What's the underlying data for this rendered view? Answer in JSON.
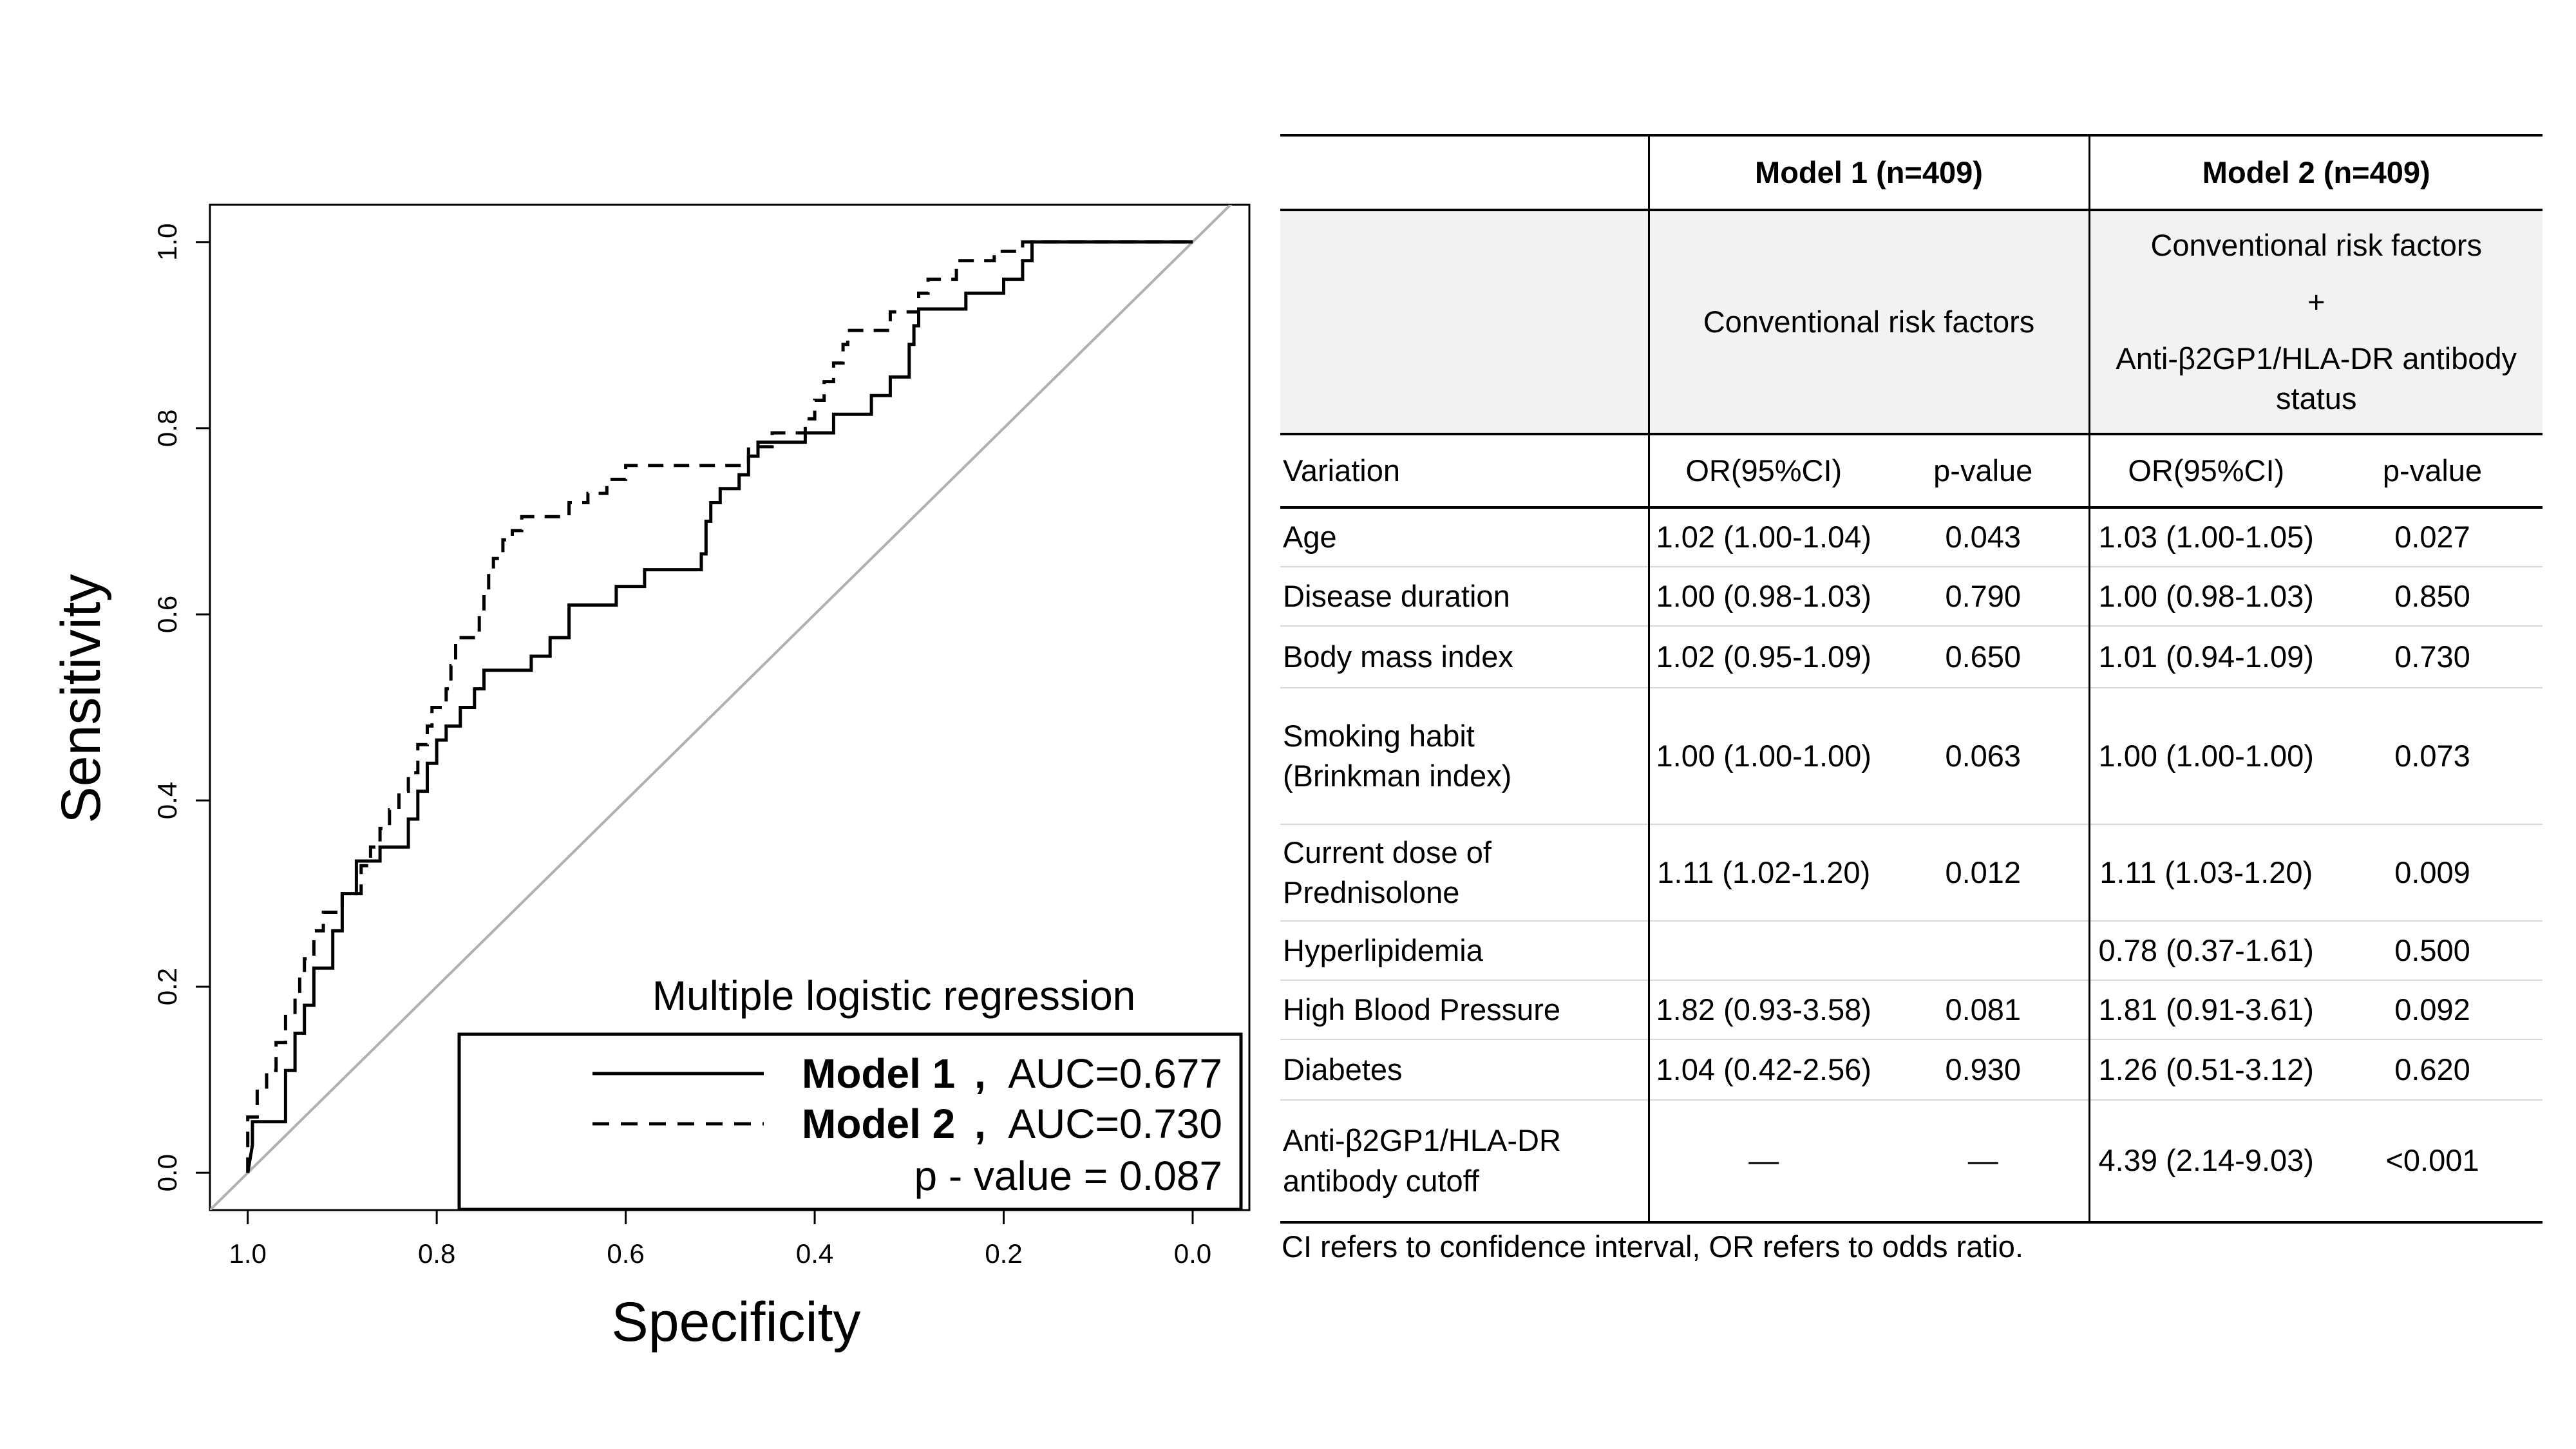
{
  "chart_data": {
    "type": "line",
    "xlabel": "Specificity",
    "ylabel": "Sensitivity",
    "xlim": [
      1.04,
      -0.06
    ],
    "ylim": [
      -0.04,
      1.04
    ],
    "x_reversed": true,
    "xticks": [
      "1.0",
      "0.8",
      "0.6",
      "0.4",
      "0.2",
      "0.0"
    ],
    "yticks": [
      "0.0",
      "0.2",
      "0.4",
      "0.6",
      "0.8",
      "1.0"
    ],
    "legend_title": "Multiple logistic regression",
    "legend_position": "bottom-right",
    "diagonal_color": "#b0b0b0",
    "series": [
      {
        "name": "Model 1",
        "auc_label": "AUC=0.677",
        "style": "solid",
        "points": [
          [
            1.0,
            0.0
          ],
          [
            0.995,
            0.03
          ],
          [
            0.995,
            0.055
          ],
          [
            0.96,
            0.055
          ],
          [
            0.96,
            0.11
          ],
          [
            0.95,
            0.11
          ],
          [
            0.95,
            0.15
          ],
          [
            0.94,
            0.15
          ],
          [
            0.94,
            0.18
          ],
          [
            0.93,
            0.18
          ],
          [
            0.93,
            0.22
          ],
          [
            0.91,
            0.22
          ],
          [
            0.91,
            0.26
          ],
          [
            0.9,
            0.26
          ],
          [
            0.9,
            0.3
          ],
          [
            0.885,
            0.3
          ],
          [
            0.885,
            0.335
          ],
          [
            0.86,
            0.335
          ],
          [
            0.86,
            0.35
          ],
          [
            0.83,
            0.35
          ],
          [
            0.83,
            0.38
          ],
          [
            0.82,
            0.38
          ],
          [
            0.82,
            0.41
          ],
          [
            0.81,
            0.41
          ],
          [
            0.81,
            0.44
          ],
          [
            0.8,
            0.44
          ],
          [
            0.8,
            0.465
          ],
          [
            0.79,
            0.465
          ],
          [
            0.79,
            0.48
          ],
          [
            0.775,
            0.48
          ],
          [
            0.775,
            0.5
          ],
          [
            0.76,
            0.5
          ],
          [
            0.76,
            0.52
          ],
          [
            0.75,
            0.52
          ],
          [
            0.75,
            0.54
          ],
          [
            0.7,
            0.54
          ],
          [
            0.7,
            0.555
          ],
          [
            0.68,
            0.555
          ],
          [
            0.68,
            0.575
          ],
          [
            0.66,
            0.575
          ],
          [
            0.66,
            0.61
          ],
          [
            0.61,
            0.61
          ],
          [
            0.61,
            0.63
          ],
          [
            0.58,
            0.63
          ],
          [
            0.58,
            0.648
          ],
          [
            0.52,
            0.648
          ],
          [
            0.52,
            0.665
          ],
          [
            0.515,
            0.665
          ],
          [
            0.515,
            0.7
          ],
          [
            0.51,
            0.7
          ],
          [
            0.51,
            0.72
          ],
          [
            0.5,
            0.72
          ],
          [
            0.5,
            0.735
          ],
          [
            0.48,
            0.735
          ],
          [
            0.48,
            0.75
          ],
          [
            0.47,
            0.75
          ],
          [
            0.47,
            0.77
          ],
          [
            0.46,
            0.77
          ],
          [
            0.46,
            0.785
          ],
          [
            0.41,
            0.785
          ],
          [
            0.41,
            0.795
          ],
          [
            0.38,
            0.795
          ],
          [
            0.38,
            0.815
          ],
          [
            0.34,
            0.815
          ],
          [
            0.34,
            0.835
          ],
          [
            0.32,
            0.835
          ],
          [
            0.32,
            0.855
          ],
          [
            0.3,
            0.855
          ],
          [
            0.3,
            0.89
          ],
          [
            0.295,
            0.89
          ],
          [
            0.295,
            0.91
          ],
          [
            0.29,
            0.91
          ],
          [
            0.29,
            0.928
          ],
          [
            0.24,
            0.928
          ],
          [
            0.24,
            0.945
          ],
          [
            0.2,
            0.945
          ],
          [
            0.2,
            0.96
          ],
          [
            0.18,
            0.96
          ],
          [
            0.18,
            0.98
          ],
          [
            0.17,
            0.98
          ],
          [
            0.17,
            1.0
          ],
          [
            0.0,
            1.0
          ]
        ]
      },
      {
        "name": "Model 2",
        "auc_label": "AUC=0.730",
        "style": "dashed",
        "points": [
          [
            1.0,
            0.0
          ],
          [
            1.0,
            0.06
          ],
          [
            0.99,
            0.06
          ],
          [
            0.99,
            0.09
          ],
          [
            0.98,
            0.09
          ],
          [
            0.98,
            0.11
          ],
          [
            0.97,
            0.11
          ],
          [
            0.97,
            0.14
          ],
          [
            0.96,
            0.14
          ],
          [
            0.96,
            0.17
          ],
          [
            0.95,
            0.17
          ],
          [
            0.95,
            0.19
          ],
          [
            0.945,
            0.19
          ],
          [
            0.945,
            0.21
          ],
          [
            0.94,
            0.21
          ],
          [
            0.94,
            0.23
          ],
          [
            0.93,
            0.23
          ],
          [
            0.93,
            0.26
          ],
          [
            0.92,
            0.26
          ],
          [
            0.92,
            0.28
          ],
          [
            0.9,
            0.28
          ],
          [
            0.9,
            0.3
          ],
          [
            0.88,
            0.3
          ],
          [
            0.88,
            0.33
          ],
          [
            0.87,
            0.33
          ],
          [
            0.87,
            0.35
          ],
          [
            0.86,
            0.35
          ],
          [
            0.86,
            0.37
          ],
          [
            0.85,
            0.37
          ],
          [
            0.85,
            0.39
          ],
          [
            0.84,
            0.39
          ],
          [
            0.84,
            0.41
          ],
          [
            0.83,
            0.41
          ],
          [
            0.83,
            0.43
          ],
          [
            0.82,
            0.43
          ],
          [
            0.82,
            0.46
          ],
          [
            0.81,
            0.46
          ],
          [
            0.81,
            0.48
          ],
          [
            0.805,
            0.48
          ],
          [
            0.805,
            0.5
          ],
          [
            0.79,
            0.5
          ],
          [
            0.79,
            0.52
          ],
          [
            0.785,
            0.52
          ],
          [
            0.785,
            0.545
          ],
          [
            0.78,
            0.545
          ],
          [
            0.78,
            0.575
          ],
          [
            0.755,
            0.575
          ],
          [
            0.755,
            0.6
          ],
          [
            0.75,
            0.6
          ],
          [
            0.75,
            0.625
          ],
          [
            0.745,
            0.625
          ],
          [
            0.745,
            0.645
          ],
          [
            0.74,
            0.645
          ],
          [
            0.74,
            0.66
          ],
          [
            0.73,
            0.66
          ],
          [
            0.73,
            0.68
          ],
          [
            0.72,
            0.68
          ],
          [
            0.72,
            0.69
          ],
          [
            0.71,
            0.69
          ],
          [
            0.71,
            0.705
          ],
          [
            0.66,
            0.705
          ],
          [
            0.66,
            0.72
          ],
          [
            0.64,
            0.72
          ],
          [
            0.64,
            0.73
          ],
          [
            0.62,
            0.73
          ],
          [
            0.62,
            0.745
          ],
          [
            0.6,
            0.745
          ],
          [
            0.6,
            0.76
          ],
          [
            0.47,
            0.76
          ],
          [
            0.47,
            0.78
          ],
          [
            0.445,
            0.78
          ],
          [
            0.445,
            0.795
          ],
          [
            0.41,
            0.795
          ],
          [
            0.41,
            0.81
          ],
          [
            0.4,
            0.81
          ],
          [
            0.4,
            0.83
          ],
          [
            0.39,
            0.83
          ],
          [
            0.39,
            0.85
          ],
          [
            0.38,
            0.85
          ],
          [
            0.38,
            0.87
          ],
          [
            0.37,
            0.87
          ],
          [
            0.37,
            0.89
          ],
          [
            0.365,
            0.89
          ],
          [
            0.365,
            0.905
          ],
          [
            0.32,
            0.905
          ],
          [
            0.32,
            0.925
          ],
          [
            0.29,
            0.925
          ],
          [
            0.29,
            0.945
          ],
          [
            0.28,
            0.945
          ],
          [
            0.28,
            0.96
          ],
          [
            0.25,
            0.96
          ],
          [
            0.25,
            0.98
          ],
          [
            0.21,
            0.98
          ],
          [
            0.21,
            0.99
          ],
          [
            0.18,
            0.99
          ],
          [
            0.18,
            1.0
          ],
          [
            0.0,
            1.0
          ]
        ]
      }
    ],
    "p_value_label": "p - value = 0.087"
  },
  "table": {
    "header": [
      "",
      "Model 1 (n=409)",
      "Model 2 (n=409)"
    ],
    "model1_desc": "Conventional risk factors",
    "model2_desc_line1": "Conventional risk factors",
    "model2_desc_plus": "+",
    "model2_desc_line2": "Anti-β2GP1/HLA-DR antibody status",
    "subheader": [
      "Variation",
      "OR(95%CI)",
      "p-value",
      "OR(95%CI)",
      "p-value"
    ],
    "rows": [
      [
        "Age",
        "1.02 (1.00-1.04)",
        "0.043",
        "1.03 (1.00-1.05)",
        "0.027"
      ],
      [
        "Disease duration",
        "1.00 (0.98-1.03)",
        "0.790",
        "1.00 (0.98-1.03)",
        "0.850"
      ],
      [
        "Body mass index",
        "1.02 (0.95-1.09)",
        "0.650",
        "1.01 (0.94-1.09)",
        "0.730"
      ],
      [
        "Smoking habit (Brinkman index)",
        "1.00 (1.00-1.00)",
        "0.063",
        "1.00 (1.00-1.00)",
        "0.073"
      ],
      [
        "Current dose of Prednisolone",
        "1.11 (1.02-1.20)",
        "0.012",
        "1.11 (1.03-1.20)",
        "0.009"
      ],
      [
        "Hyperlipidemia",
        "",
        "",
        "0.78 (0.37-1.61)",
        "0.500"
      ],
      [
        "High Blood Pressure",
        "1.82 (0.93-3.58)",
        "0.081",
        "1.81 (0.91-3.61)",
        "0.092"
      ],
      [
        "Diabetes",
        "1.04 (0.42-2.56)",
        "0.930",
        "1.26 (0.51-3.12)",
        "0.620"
      ],
      [
        "Anti-β2GP1/HLA-DR antibody cutoff",
        "—",
        "—",
        "4.39 (2.14-9.03)",
        "<0.001"
      ]
    ],
    "footnote": "CI refers to confidence interval, OR refers to odds ratio."
  }
}
